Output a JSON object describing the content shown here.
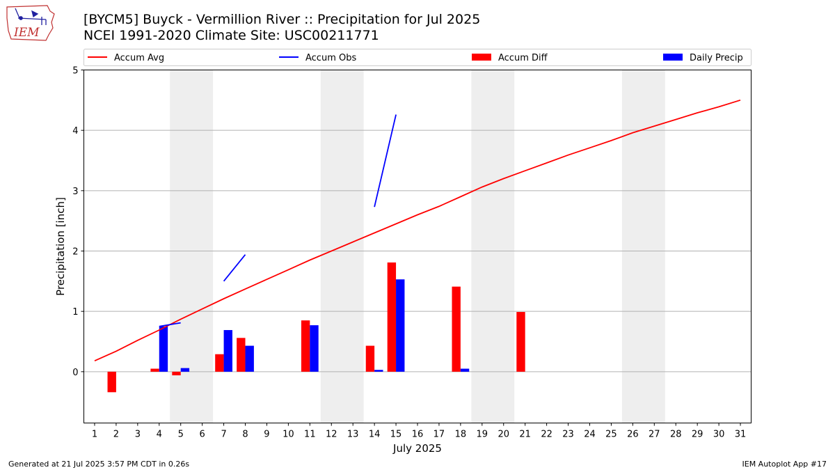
{
  "header": {
    "title": "[BYCM5] Buyck - Vermillion River :: Precipitation for Jul 2025",
    "subtitle": "NCEI 1991-2020 Climate Site: USC00211771",
    "logo_text": "IEM"
  },
  "footer": {
    "generated": "Generated at 21 Jul 2025 3:57 PM CDT in 0.26s",
    "app": "IEM Autoplot App #17"
  },
  "chart_data": {
    "type": "bar",
    "xlabel": "July 2025",
    "ylabel": "Precipitation [inch]",
    "xlim": [
      0.5,
      31.5
    ],
    "ylim": [
      -0.85,
      5.0
    ],
    "yticks": [
      0,
      1,
      2,
      3,
      4,
      5
    ],
    "xticks": [
      1,
      2,
      3,
      4,
      5,
      6,
      7,
      8,
      9,
      10,
      11,
      12,
      13,
      14,
      15,
      16,
      17,
      18,
      19,
      20,
      21,
      22,
      23,
      24,
      25,
      26,
      27,
      28,
      29,
      30,
      31
    ],
    "grid": "horizontal",
    "weekend_shading": [
      [
        4.5,
        6.5
      ],
      [
        11.5,
        13.5
      ],
      [
        18.5,
        20.5
      ],
      [
        25.5,
        27.5
      ]
    ],
    "legend": {
      "placement": "top",
      "entries": [
        {
          "name": "Accum Avg",
          "kind": "line",
          "color": "#ff0000"
        },
        {
          "name": "Accum Obs",
          "kind": "line",
          "color": "#0000ff"
        },
        {
          "name": "Accum Diff",
          "kind": "bar",
          "color": "#ff0000"
        },
        {
          "name": "Daily Precip",
          "kind": "bar",
          "color": "#0000ff"
        }
      ]
    },
    "series": [
      {
        "name": "Accum Avg",
        "type": "line",
        "color": "#ff0000",
        "x": [
          1,
          2,
          3,
          4,
          5,
          6,
          7,
          8,
          9,
          10,
          11,
          12,
          13,
          14,
          15,
          16,
          17,
          18,
          19,
          20,
          21,
          22,
          23,
          24,
          25,
          26,
          27,
          28,
          29,
          30,
          31
        ],
        "values": [
          0.18,
          0.34,
          0.52,
          0.69,
          0.87,
          1.04,
          1.21,
          1.37,
          1.53,
          1.69,
          1.85,
          2.0,
          2.15,
          2.3,
          2.45,
          2.6,
          2.74,
          2.9,
          3.06,
          3.2,
          3.33,
          3.46,
          3.59,
          3.71,
          3.83,
          3.96,
          4.07,
          4.18,
          4.29,
          4.39,
          4.5
        ]
      },
      {
        "name": "Accum Obs",
        "type": "line",
        "color": "#0000ff",
        "segments": [
          {
            "x": [
              4,
              5
            ],
            "values": [
              0.75,
              0.81
            ]
          },
          {
            "x": [
              7,
              8
            ],
            "values": [
              1.5,
              1.94
            ]
          },
          {
            "x": [
              14,
              15
            ],
            "values": [
              2.73,
              4.26
            ]
          }
        ]
      },
      {
        "name": "Accum Diff",
        "type": "bar",
        "color": "#ff0000",
        "x": [
          2,
          4,
          5,
          7,
          8,
          11,
          14,
          15,
          18,
          21
        ],
        "values": [
          -0.34,
          0.05,
          -0.06,
          0.29,
          0.56,
          0.85,
          0.43,
          1.81,
          1.41,
          0.99
        ]
      },
      {
        "name": "Daily Precip",
        "type": "bar",
        "color": "#0000ff",
        "x": [
          4,
          5,
          7,
          8,
          11,
          14,
          15,
          18
        ],
        "values": [
          0.75,
          0.06,
          0.69,
          0.43,
          0.77,
          0.03,
          1.53,
          0.05
        ]
      }
    ]
  }
}
